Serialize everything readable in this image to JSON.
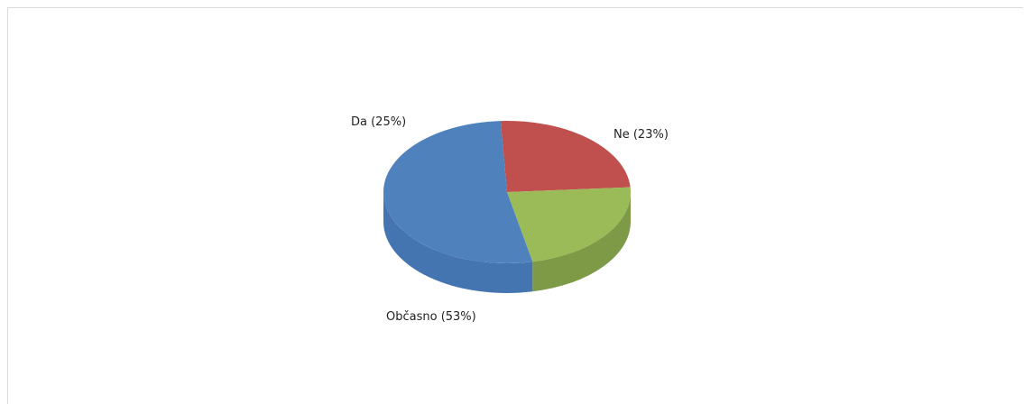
{
  "chart_data": {
    "type": "pie",
    "title": "",
    "legend": "none",
    "slices": [
      {
        "label": "Da (25%)",
        "value": 25,
        "color": "#c0504d",
        "side_color": "#9c3f3c"
      },
      {
        "label": "Ne (23%)",
        "value": 23,
        "color": "#9bbb59",
        "side_color": "#7e9a47"
      },
      {
        "label": "Občasno (53%)",
        "value": 53,
        "color": "#4f81bd",
        "side_color": "#4575b0"
      }
    ]
  }
}
